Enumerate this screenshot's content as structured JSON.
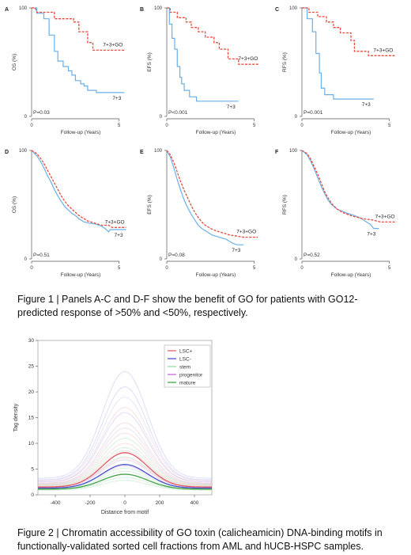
{
  "figure1": {
    "caption": "Figure 1 | Panels A-C and D-F show the benefit of GO for patients with GO12-predicted response of >50% and <50%, respectively.",
    "panels": [
      {
        "letter": "A",
        "ylabel": "OS (%)",
        "pvalue": "P=0.03",
        "go_label": "7+3+GO",
        "ctrl_label": "7+3",
        "go": [
          [
            0,
            100
          ],
          [
            0.2,
            100
          ],
          [
            0.3,
            96
          ],
          [
            1.3,
            96
          ],
          [
            1.3,
            90
          ],
          [
            2.4,
            90
          ],
          [
            2.4,
            87
          ],
          [
            2.7,
            87
          ],
          [
            2.7,
            78
          ],
          [
            3.2,
            78
          ],
          [
            3.2,
            68
          ],
          [
            3.5,
            68
          ],
          [
            3.5,
            61
          ],
          [
            5.3,
            61
          ]
        ],
        "ctrl": [
          [
            0,
            100
          ],
          [
            0.3,
            100
          ],
          [
            0.3,
            95
          ],
          [
            0.7,
            95
          ],
          [
            0.7,
            90
          ],
          [
            1.0,
            90
          ],
          [
            1.0,
            75
          ],
          [
            1.3,
            75
          ],
          [
            1.3,
            60
          ],
          [
            1.5,
            60
          ],
          [
            1.5,
            51
          ],
          [
            1.8,
            51
          ],
          [
            1.8,
            46
          ],
          [
            2.1,
            46
          ],
          [
            2.1,
            42
          ],
          [
            2.3,
            42
          ],
          [
            2.3,
            38
          ],
          [
            2.5,
            38
          ],
          [
            2.5,
            33
          ],
          [
            2.8,
            33
          ],
          [
            2.8,
            30
          ],
          [
            3.0,
            30
          ],
          [
            3.0,
            28
          ],
          [
            3.2,
            28
          ],
          [
            3.2,
            24
          ],
          [
            3.7,
            24
          ],
          [
            3.7,
            22
          ],
          [
            5.3,
            22
          ]
        ]
      },
      {
        "letter": "B",
        "ylabel": "EFS (%)",
        "pvalue": "P<0.001",
        "go_label": "7+3+GO",
        "ctrl_label": "7+3",
        "go": [
          [
            0,
            100
          ],
          [
            0.2,
            100
          ],
          [
            0.2,
            96
          ],
          [
            0.6,
            96
          ],
          [
            0.6,
            91
          ],
          [
            1.1,
            91
          ],
          [
            1.1,
            87
          ],
          [
            1.4,
            87
          ],
          [
            1.4,
            82
          ],
          [
            1.8,
            82
          ],
          [
            1.8,
            78
          ],
          [
            2.2,
            78
          ],
          [
            2.2,
            73
          ],
          [
            2.7,
            73
          ],
          [
            2.7,
            68
          ],
          [
            3.0,
            68
          ],
          [
            3.0,
            62
          ],
          [
            3.5,
            62
          ],
          [
            3.5,
            53
          ],
          [
            4.1,
            53
          ],
          [
            4.1,
            48
          ],
          [
            5.3,
            48
          ]
        ],
        "ctrl": [
          [
            0,
            100
          ],
          [
            0.15,
            100
          ],
          [
            0.15,
            85
          ],
          [
            0.3,
            85
          ],
          [
            0.3,
            72
          ],
          [
            0.45,
            72
          ],
          [
            0.45,
            62
          ],
          [
            0.6,
            62
          ],
          [
            0.6,
            46
          ],
          [
            0.75,
            46
          ],
          [
            0.75,
            36
          ],
          [
            0.85,
            36
          ],
          [
            0.85,
            30
          ],
          [
            1.0,
            30
          ],
          [
            1.0,
            24
          ],
          [
            1.3,
            24
          ],
          [
            1.3,
            18
          ],
          [
            1.7,
            18
          ],
          [
            1.7,
            14
          ],
          [
            4.1,
            14
          ]
        ]
      },
      {
        "letter": "C",
        "ylabel": "RFS (%)",
        "pvalue": "P=0.001",
        "go_label": "7+3+GO",
        "ctrl_label": "7+3",
        "go": [
          [
            0,
            100
          ],
          [
            0.4,
            100
          ],
          [
            0.4,
            96
          ],
          [
            0.9,
            96
          ],
          [
            0.9,
            92
          ],
          [
            1.4,
            92
          ],
          [
            1.4,
            87
          ],
          [
            1.8,
            87
          ],
          [
            1.8,
            82
          ],
          [
            2.2,
            82
          ],
          [
            2.2,
            77
          ],
          [
            2.8,
            77
          ],
          [
            2.8,
            70
          ],
          [
            3.0,
            70
          ],
          [
            3.0,
            60
          ],
          [
            3.8,
            60
          ],
          [
            3.8,
            56
          ],
          [
            5.3,
            56
          ]
        ],
        "ctrl": [
          [
            0,
            100
          ],
          [
            0.3,
            100
          ],
          [
            0.3,
            90
          ],
          [
            0.6,
            90
          ],
          [
            0.6,
            78
          ],
          [
            0.8,
            78
          ],
          [
            0.8,
            58
          ],
          [
            1.0,
            58
          ],
          [
            1.0,
            40
          ],
          [
            1.1,
            40
          ],
          [
            1.1,
            26
          ],
          [
            1.3,
            26
          ],
          [
            1.3,
            20
          ],
          [
            1.8,
            20
          ],
          [
            1.8,
            16
          ],
          [
            4.1,
            16
          ]
        ]
      },
      {
        "letter": "D",
        "ylabel": "OS (%)",
        "pvalue": "P=0.51",
        "go_label": "7+3+GO",
        "ctrl_label": "7+3",
        "go": [
          [
            0,
            100
          ],
          [
            0.3,
            97
          ],
          [
            0.5,
            93
          ],
          [
            0.7,
            88
          ],
          [
            0.9,
            82
          ],
          [
            1.1,
            76
          ],
          [
            1.3,
            70
          ],
          [
            1.5,
            64
          ],
          [
            1.7,
            58
          ],
          [
            1.9,
            53
          ],
          [
            2.1,
            49
          ],
          [
            2.3,
            46
          ],
          [
            2.5,
            43
          ],
          [
            2.7,
            40
          ],
          [
            3.0,
            37
          ],
          [
            3.2,
            35
          ],
          [
            3.6,
            33
          ],
          [
            4.0,
            31
          ],
          [
            4.4,
            31
          ],
          [
            4.6,
            29
          ],
          [
            5.4,
            29
          ]
        ],
        "ctrl": [
          [
            0,
            100
          ],
          [
            0.3,
            95
          ],
          [
            0.5,
            90
          ],
          [
            0.7,
            84
          ],
          [
            0.9,
            77
          ],
          [
            1.1,
            71
          ],
          [
            1.3,
            64
          ],
          [
            1.5,
            58
          ],
          [
            1.7,
            53
          ],
          [
            1.9,
            48
          ],
          [
            2.1,
            45
          ],
          [
            2.3,
            42
          ],
          [
            2.5,
            40
          ],
          [
            2.7,
            37
          ],
          [
            3.0,
            34
          ],
          [
            3.3,
            33
          ],
          [
            3.7,
            32
          ],
          [
            4.0,
            30
          ],
          [
            4.2,
            28
          ],
          [
            4.4,
            25
          ],
          [
            4.5,
            27
          ],
          [
            5.4,
            27
          ]
        ]
      },
      {
        "letter": "E",
        "ylabel": "EFS (%)",
        "pvalue": "P=0.08",
        "go_label": "7+3+GO",
        "ctrl_label": "7+3",
        "go": [
          [
            0,
            100
          ],
          [
            0.2,
            96
          ],
          [
            0.4,
            89
          ],
          [
            0.6,
            80
          ],
          [
            0.8,
            71
          ],
          [
            1.0,
            63
          ],
          [
            1.2,
            56
          ],
          [
            1.4,
            49
          ],
          [
            1.6,
            43
          ],
          [
            1.8,
            38
          ],
          [
            2.0,
            34
          ],
          [
            2.2,
            31
          ],
          [
            2.5,
            28
          ],
          [
            2.8,
            26
          ],
          [
            3.2,
            24
          ],
          [
            3.6,
            22
          ],
          [
            4.0,
            21
          ],
          [
            4.4,
            20
          ],
          [
            5.2,
            20
          ]
        ],
        "ctrl": [
          [
            0,
            100
          ],
          [
            0.2,
            94
          ],
          [
            0.4,
            84
          ],
          [
            0.6,
            73
          ],
          [
            0.8,
            63
          ],
          [
            1.0,
            54
          ],
          [
            1.2,
            47
          ],
          [
            1.4,
            41
          ],
          [
            1.6,
            36
          ],
          [
            1.8,
            31
          ],
          [
            2.0,
            28
          ],
          [
            2.3,
            25
          ],
          [
            2.6,
            22
          ],
          [
            3.0,
            20
          ],
          [
            3.4,
            18
          ],
          [
            3.7,
            15
          ],
          [
            4.0,
            13
          ],
          [
            4.4,
            13
          ]
        ]
      },
      {
        "letter": "F",
        "ylabel": "RFS (%)",
        "pvalue": "P=0.52",
        "go_label": "7+3+GO",
        "ctrl_label": "7+3",
        "go": [
          [
            0,
            100
          ],
          [
            0.3,
            97
          ],
          [
            0.5,
            92
          ],
          [
            0.7,
            85
          ],
          [
            0.9,
            78
          ],
          [
            1.1,
            70
          ],
          [
            1.3,
            62
          ],
          [
            1.5,
            56
          ],
          [
            1.7,
            51
          ],
          [
            2.0,
            46
          ],
          [
            2.3,
            43
          ],
          [
            2.6,
            41
          ],
          [
            3.0,
            39
          ],
          [
            3.5,
            37
          ],
          [
            4.0,
            36
          ],
          [
            4.5,
            34
          ],
          [
            5.4,
            34
          ]
        ],
        "ctrl": [
          [
            0,
            100
          ],
          [
            0.3,
            96
          ],
          [
            0.5,
            90
          ],
          [
            0.7,
            83
          ],
          [
            0.9,
            75
          ],
          [
            1.1,
            67
          ],
          [
            1.3,
            60
          ],
          [
            1.5,
            54
          ],
          [
            1.7,
            50
          ],
          [
            2.0,
            46
          ],
          [
            2.3,
            44
          ],
          [
            2.6,
            42
          ],
          [
            3.0,
            40
          ],
          [
            3.3,
            38
          ],
          [
            3.6,
            35
          ],
          [
            3.9,
            32
          ],
          [
            4.1,
            28
          ],
          [
            4.4,
            28
          ]
        ]
      }
    ]
  },
  "figure2": {
    "caption": "Figure 2 | Chromatin accessibility of GO toxin (calicheamicin) DNA-binding motifs in functionally-validated sorted cell fractions from AML and hUCB-HSPC samples.",
    "xlabel": "Distance from motif",
    "ylabel": "Tag density",
    "xticks": [
      "-400",
      "-200",
      "0",
      "200",
      "400"
    ],
    "yticks": [
      "0",
      "5",
      "10",
      "15",
      "20",
      "25",
      "30"
    ],
    "legend": [
      {
        "label": "LSC+",
        "color": "#e0707a"
      },
      {
        "label": "LSC-",
        "color": "#5a5fd6"
      },
      {
        "label": "stem",
        "color": "#9de0a8"
      },
      {
        "label": "progenitor",
        "color": "#c872d8"
      },
      {
        "label": "mature",
        "color": "#4caf50"
      }
    ],
    "chart_data": {
      "type": "line",
      "xlim": [
        -500,
        500
      ],
      "ylim": [
        0,
        30
      ],
      "series": [
        {
          "name": "LSC+",
          "peak": 8.2,
          "base": 1.5,
          "color": "#e05a66"
        },
        {
          "name": "LSC-",
          "peak": 5.9,
          "base": 1.3,
          "color": "#4a4fd0"
        },
        {
          "name": "mature",
          "peak": 4.0,
          "base": 1.1,
          "color": "#43a047"
        }
      ]
    }
  },
  "km_axes": {
    "xlabel": "Follow-up (Years)",
    "xticks": [
      "0",
      "5"
    ],
    "yticks": [
      "0",
      "100"
    ]
  }
}
